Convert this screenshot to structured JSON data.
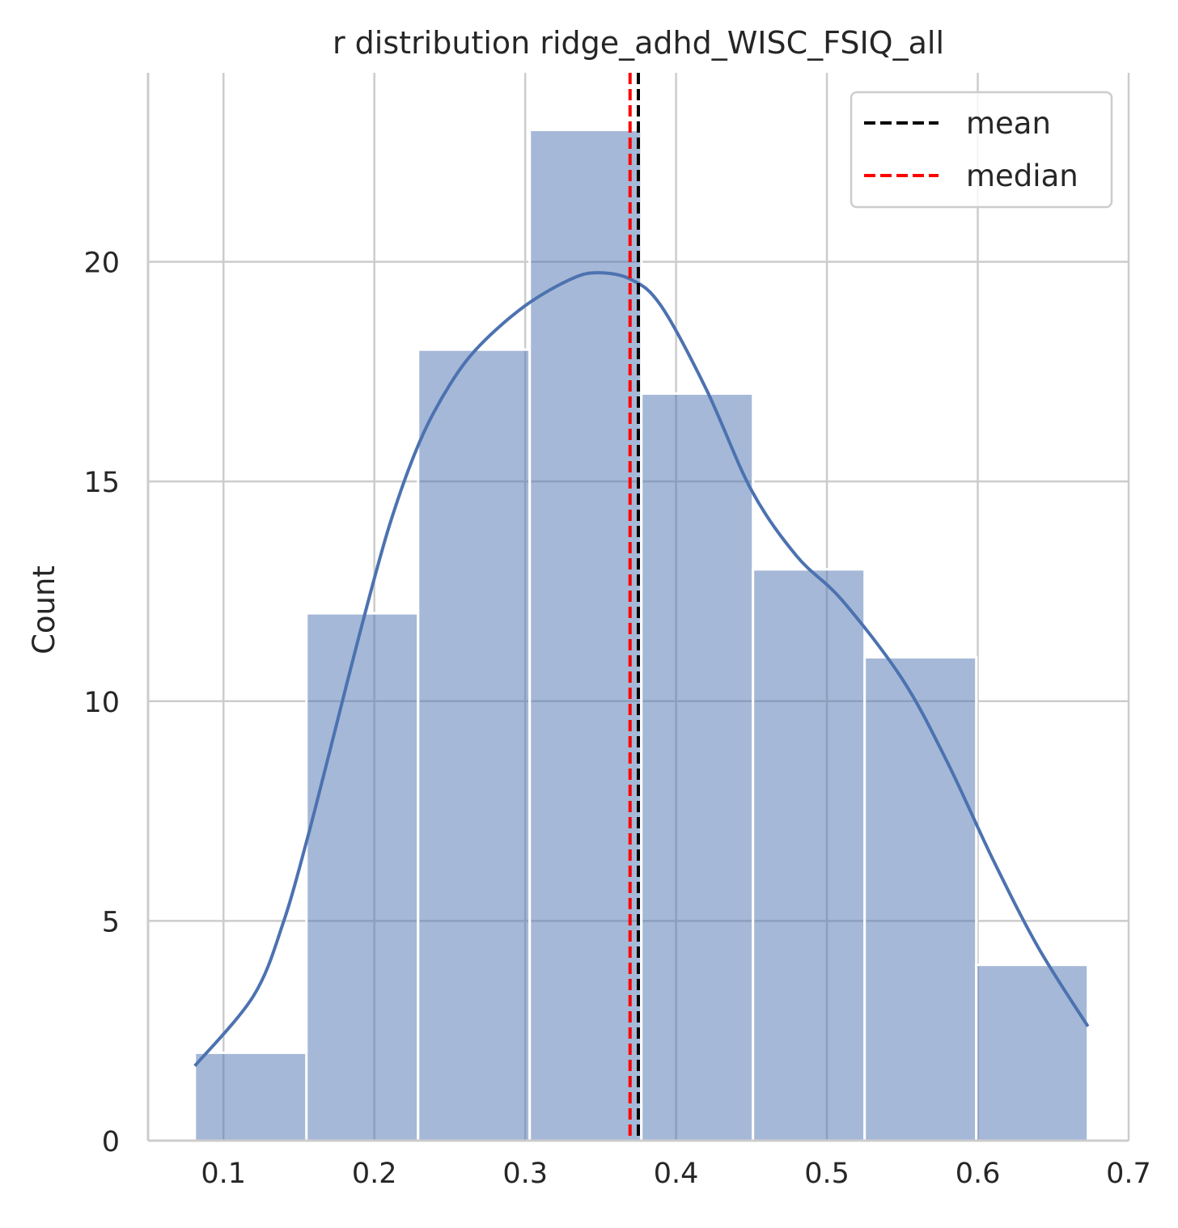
{
  "chart_data": {
    "type": "bar",
    "subtype": "histogram-with-kde",
    "title": "r distribution ridge_adhd_WISC_FSIQ_all",
    "xlabel": "",
    "ylabel": "Count",
    "xlim": [
      0.05,
      0.7
    ],
    "ylim": [
      0,
      24.3
    ],
    "xticks": [
      0.1,
      0.2,
      0.3,
      0.4,
      0.5,
      0.6,
      0.7
    ],
    "xtick_labels": [
      "0.1",
      "0.2",
      "0.3",
      "0.4",
      "0.5",
      "0.6",
      "0.7"
    ],
    "yticks": [
      0,
      5,
      10,
      15,
      20
    ],
    "ytick_labels": [
      "0",
      "5",
      "10",
      "15",
      "20"
    ],
    "grid": true,
    "bins": [
      {
        "x0": 0.081,
        "x1": 0.155,
        "count": 2
      },
      {
        "x0": 0.155,
        "x1": 0.229,
        "count": 12
      },
      {
        "x0": 0.229,
        "x1": 0.303,
        "count": 18
      },
      {
        "x0": 0.303,
        "x1": 0.377,
        "count": 23
      },
      {
        "x0": 0.377,
        "x1": 0.451,
        "count": 17
      },
      {
        "x0": 0.451,
        "x1": 0.525,
        "count": 13
      },
      {
        "x0": 0.525,
        "x1": 0.599,
        "count": 11
      },
      {
        "x0": 0.599,
        "x1": 0.673,
        "count": 4
      }
    ],
    "kde": {
      "x": [
        0.081,
        0.12,
        0.14,
        0.155,
        0.17,
        0.19,
        0.21,
        0.23,
        0.25,
        0.27,
        0.3,
        0.33,
        0.348,
        0.37,
        0.39,
        0.42,
        0.45,
        0.48,
        0.51,
        0.55,
        0.58,
        0.61,
        0.64,
        0.673
      ],
      "y": [
        1.7,
        3.3,
        5.0,
        6.8,
        8.8,
        11.5,
        14.0,
        15.9,
        17.2,
        18.1,
        19.0,
        19.6,
        19.75,
        19.6,
        19.0,
        17.1,
        14.8,
        13.3,
        12.3,
        10.5,
        8.6,
        6.4,
        4.4,
        2.6
      ]
    },
    "lines": [
      {
        "name": "mean",
        "x": 0.375,
        "color": "#000000",
        "style": "dashed"
      },
      {
        "name": "median",
        "x": 0.3695,
        "color": "#ff0000",
        "style": "dashed"
      }
    ],
    "legend": {
      "placement": "top-right",
      "entries": [
        {
          "label": "mean",
          "color": "#000000"
        },
        {
          "label": "median",
          "color": "#ff0000"
        }
      ]
    },
    "colors": {
      "bar": "#4c72b0",
      "kde": "#4c72b0",
      "grid": "#cccccc",
      "text": "#262626"
    }
  }
}
